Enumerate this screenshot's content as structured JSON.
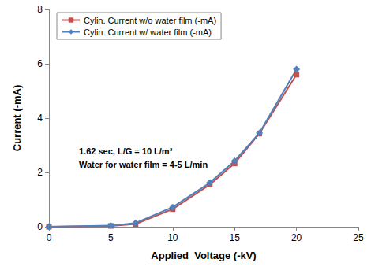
{
  "chart_data": {
    "type": "line",
    "x_label": "Applied  Voltage (-kV)",
    "y_label": "Current (-mA)",
    "x": [
      0,
      5,
      7,
      10,
      13,
      15,
      17,
      20
    ],
    "series": [
      {
        "name": "Cylin. Current w/o water film (-mA)",
        "color": "#c0504d",
        "marker": "square",
        "line_style": "solid",
        "values": [
          0,
          0.03,
          0.1,
          0.65,
          1.55,
          2.33,
          3.43,
          5.6
        ]
      },
      {
        "name": "Cylin. Current w/ water film (-mA)",
        "color": "#4f81bd",
        "marker": "diamond",
        "line_style": "solid",
        "values": [
          0,
          0.04,
          0.14,
          0.72,
          1.62,
          2.42,
          3.45,
          5.8
        ]
      }
    ],
    "xlim": [
      0,
      25
    ],
    "xticks": [
      0,
      5,
      10,
      15,
      20,
      25
    ],
    "ylim": [
      0,
      8
    ],
    "yticks": [
      0,
      2,
      4,
      6,
      8
    ],
    "grid": false,
    "legend": "upper left",
    "annotations": [
      "1.62 sec, L/G = 10 L/m³",
      "Water for water film = 4-5 L/min"
    ]
  }
}
